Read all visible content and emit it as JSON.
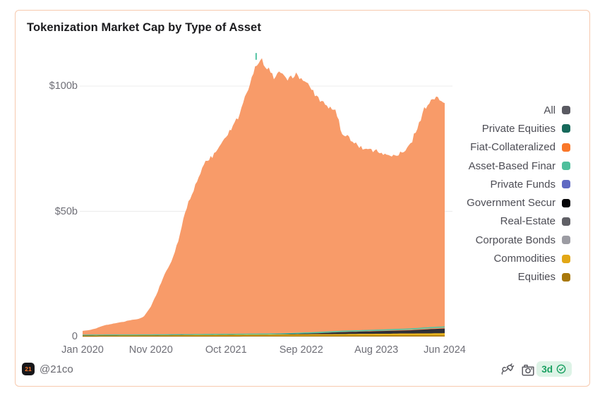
{
  "card": {
    "title": "Tokenization Market Cap by Type of Asset"
  },
  "y_axis": {
    "labels": [
      "$100b",
      "$50b",
      "0"
    ],
    "values": [
      100,
      50,
      0
    ]
  },
  "x_axis": {
    "labels": [
      "Jan 2020",
      "Nov 2020",
      "Oct 2021",
      "Sep 2022",
      "Aug 2023",
      "Jun 2024"
    ],
    "months": [
      0,
      10,
      21,
      32,
      43,
      53
    ]
  },
  "legend": {
    "items": [
      {
        "label": "All",
        "color": "#5a5a62"
      },
      {
        "label": "Private Equities",
        "color": "#17695b"
      },
      {
        "label": "Fiat-Collateralized",
        "color": "#f9772a"
      },
      {
        "label": "Asset-Based Finar",
        "color": "#4fbf9c"
      },
      {
        "label": "Private Funds",
        "color": "#5f69c3"
      },
      {
        "label": "Government Secur",
        "color": "#050507"
      },
      {
        "label": "Real-Estate",
        "color": "#606066"
      },
      {
        "label": "Corporate Bonds",
        "color": "#9c9ca3"
      },
      {
        "label": "Commodities",
        "color": "#e2a716"
      },
      {
        "label": "Equities",
        "color": "#a8780b"
      }
    ]
  },
  "footer": {
    "logo_text": "21",
    "handle": "@21co",
    "badge_text": "3d",
    "icons": [
      "plug-icon",
      "camera-icon",
      "verified-seal-icon"
    ]
  },
  "colors": {
    "card_border": "#f7c9ae",
    "gridline": "#ececec",
    "axis_text": "#6e6e76",
    "legend_text": "#4d4d55",
    "area_fiat": "#f89b69",
    "band_government": "#2f2f36",
    "line_asset_based": "#53c3a3",
    "band_commodities": "#e7b41c",
    "line_equities": "#a8780a",
    "badge_bg": "#ddf3e6",
    "badge_green": "#189f60"
  },
  "chart_data": {
    "type": "area",
    "title": "Tokenization Market Cap by Type of Asset",
    "unit": "$ billions",
    "x_start": "Jan 2020",
    "x_end": "Jun 2024",
    "x_tick_labels": [
      "Jan 2020",
      "Nov 2020",
      "Oct 2021",
      "Sep 2022",
      "Aug 2023",
      "Jun 2024"
    ],
    "y_tick_labels": [
      "0",
      "$50b",
      "$100b"
    ],
    "ylim": [
      0,
      115
    ],
    "grid": "horizontal",
    "legend_position": "right",
    "note": "values in $b, monthly from Jan 2020 (index 0) to Jun 2024 (index 53), approximate read from pixels; stacked area dominated by Fiat-Collateralized stablecoins; peak ~111b around Mar 2022, trough ~72b around Oct 2023, ~93b at Jun 2024",
    "series": [
      {
        "name": "Fiat-Collateralized (stack top edge)",
        "color": "#f89b69",
        "monthly_values": [
          2.3,
          2.6,
          3.3,
          4.3,
          4.9,
          5.4,
          5.9,
          6.6,
          6.9,
          8,
          12,
          18,
          25,
          30,
          38,
          50,
          57,
          64,
          70,
          72,
          76,
          80,
          84,
          89,
          97,
          106,
          111,
          107,
          104,
          106,
          102,
          105,
          103,
          101,
          97,
          94,
          91.5,
          90,
          81,
          79,
          77,
          75.5,
          74.5,
          74,
          73,
          72,
          72.5,
          74,
          77,
          83,
          91,
          94.5,
          95,
          93
        ]
      },
      {
        "name": "Government Securities",
        "color": "#2f2f36",
        "keypoints": [
          [
            0,
            0.02
          ],
          [
            28,
            0.05
          ],
          [
            30,
            0.15
          ],
          [
            34,
            0.4
          ],
          [
            38,
            0.8
          ],
          [
            44,
            1.1
          ],
          [
            48,
            1.3
          ],
          [
            51,
            1.7
          ],
          [
            53,
            1.9
          ]
        ]
      },
      {
        "name": "Asset-Based Finance",
        "color": "#53c3a3",
        "keypoints": [
          [
            0,
            0.0
          ],
          [
            30,
            0.05
          ],
          [
            36,
            0.2
          ],
          [
            44,
            0.3
          ],
          [
            50,
            0.45
          ],
          [
            53,
            0.5
          ]
        ]
      },
      {
        "name": "Commodities",
        "color": "#e7b41c",
        "keypoints": [
          [
            0,
            0.12
          ],
          [
            12,
            0.2
          ],
          [
            24,
            0.4
          ],
          [
            36,
            0.55
          ],
          [
            48,
            0.8
          ],
          [
            53,
            0.9
          ]
        ]
      },
      {
        "name": "Equities",
        "color": "#a8780a",
        "keypoints": [
          [
            0,
            0.3
          ],
          [
            53,
            0.42
          ]
        ]
      }
    ]
  }
}
